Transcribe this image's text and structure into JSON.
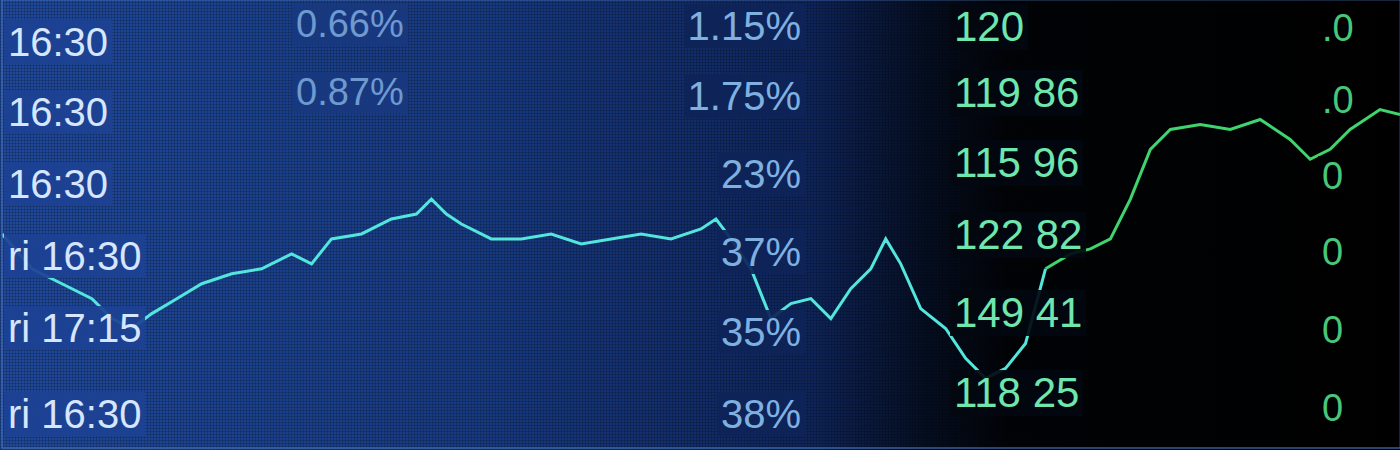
{
  "chart_data": {
    "type": "line",
    "x": [
      0,
      30,
      60,
      90,
      110,
      130,
      150,
      175,
      200,
      230,
      260,
      290,
      310,
      330,
      360,
      390,
      415,
      430,
      445,
      460,
      490,
      520,
      550,
      580,
      610,
      640,
      670,
      700,
      715,
      730,
      750,
      770,
      790,
      810,
      830,
      850,
      870,
      885,
      900,
      920,
      945,
      965,
      985,
      1005,
      1025,
      1045,
      1070,
      1090,
      1110,
      1130,
      1150,
      1170,
      1200,
      1230,
      1260,
      1290,
      1310,
      1330,
      1350,
      1380,
      1400
    ],
    "xlim": [
      0,
      1400
    ],
    "ylim": [
      0,
      450
    ],
    "xticks": [
      230,
      590,
      910
    ],
    "yticks": [
      40,
      115,
      195,
      275,
      355
    ],
    "grid": true,
    "tick_labels": false,
    "series": [
      {
        "color": "#52e6dc",
        "line_style": "solid",
        "marker": "none",
        "values": [
          215,
          180,
          165,
          150,
          130,
          120,
          135,
          150,
          165,
          175,
          180,
          195,
          185,
          210,
          215,
          230,
          235,
          250,
          235,
          225,
          210,
          210,
          215,
          205,
          210,
          215,
          210,
          220,
          230,
          210,
          180,
          130,
          145,
          150,
          130,
          160,
          180,
          210,
          185,
          140,
          120,
          90,
          70,
          80,
          105,
          180,
          null,
          null,
          null,
          null,
          null,
          null,
          null,
          null,
          null,
          null,
          null,
          null,
          null,
          null,
          null
        ]
      },
      {
        "color": "#3fd46e",
        "line_style": "solid",
        "marker": "none",
        "values": [
          null,
          null,
          null,
          null,
          null,
          null,
          null,
          null,
          null,
          null,
          null,
          null,
          null,
          null,
          null,
          null,
          null,
          null,
          null,
          null,
          null,
          null,
          null,
          null,
          null,
          null,
          null,
          null,
          null,
          null,
          null,
          null,
          null,
          null,
          null,
          null,
          null,
          null,
          null,
          null,
          null,
          null,
          null,
          null,
          null,
          180,
          195,
          200,
          210,
          250,
          300,
          320,
          325,
          320,
          330,
          310,
          290,
          300,
          320,
          340,
          335
        ]
      }
    ]
  },
  "table": {
    "columns": [
      {
        "cells": [
          "16:30",
          "16:30",
          "16:30",
          "ri 16:30",
          "ri 17:15",
          "ri 16:30"
        ]
      },
      {
        "cells": [
          "0.66%",
          "0.87%"
        ]
      },
      {
        "cells": [
          "1.15%",
          "1.75%",
          "23%",
          "37%",
          "35%",
          "38%"
        ]
      },
      {
        "cells": [
          "120",
          "119 86",
          "115 96",
          "122 82",
          "149 41",
          "118 25"
        ]
      },
      {
        "cells": [
          ".0",
          ".0",
          "0",
          "0",
          "0",
          "0"
        ]
      }
    ]
  }
}
